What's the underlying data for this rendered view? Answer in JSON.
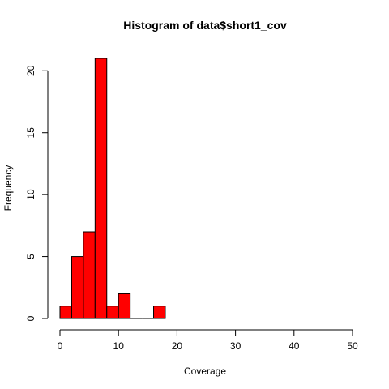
{
  "chart_data": {
    "type": "bar",
    "title": "Histogram of data$short1_cov",
    "xlabel": "Coverage",
    "ylabel": "Frequency",
    "xlim": [
      0,
      50
    ],
    "ylim": [
      0,
      21
    ],
    "bar_color": "#ff0000",
    "bin_width": 2,
    "bins": [
      {
        "start": 0,
        "end": 2,
        "count": 1
      },
      {
        "start": 2,
        "end": 4,
        "count": 5
      },
      {
        "start": 4,
        "end": 6,
        "count": 7
      },
      {
        "start": 6,
        "end": 8,
        "count": 21
      },
      {
        "start": 8,
        "end": 10,
        "count": 1
      },
      {
        "start": 10,
        "end": 12,
        "count": 2
      },
      {
        "start": 12,
        "end": 14,
        "count": 0
      },
      {
        "start": 14,
        "end": 16,
        "count": 0
      },
      {
        "start": 16,
        "end": 18,
        "count": 1
      }
    ],
    "x_ticks": [
      0,
      10,
      20,
      30,
      40,
      50
    ],
    "y_ticks": [
      0,
      5,
      10,
      15,
      20
    ],
    "grid": false,
    "legend": "none"
  }
}
